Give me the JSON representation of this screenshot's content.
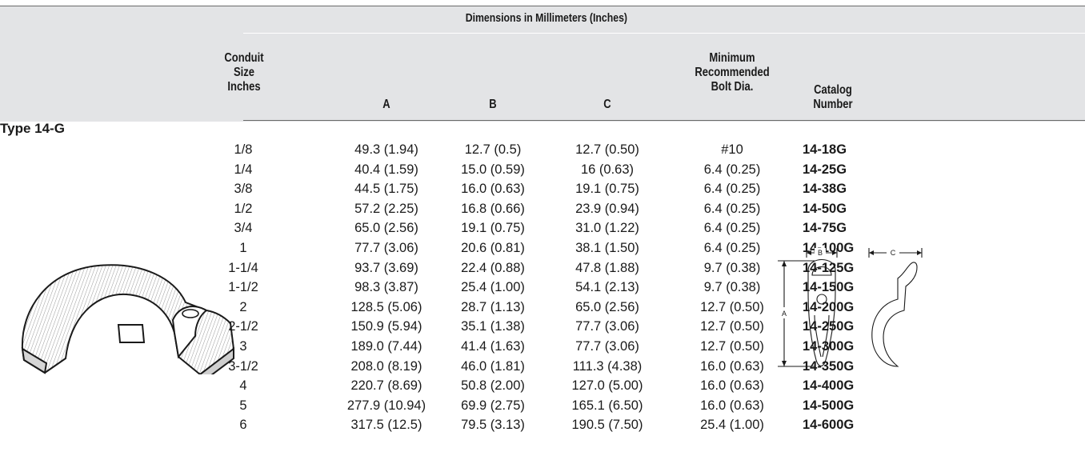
{
  "title": "Dimensions in Millimeters (Inches)",
  "columns": {
    "size": [
      "Conduit",
      "Size",
      "Inches"
    ],
    "a": "A",
    "b": "B",
    "c": "C",
    "bolt": [
      "Minimum",
      "Recommended",
      "Bolt Dia."
    ],
    "catalog": [
      "Catalog",
      "Number"
    ]
  },
  "type_label": "Type 14-G",
  "rows": [
    {
      "size": "1/8",
      "a": "49.3 (1.94)",
      "b": "12.7 (0.5)",
      "c": "12.7 (0.50)",
      "bolt": "#10",
      "catalog": "14-18G"
    },
    {
      "size": "1/4",
      "a": "40.4 (1.59)",
      "b": "15.0 (0.59)",
      "c": "16 (0.63)",
      "bolt": "6.4 (0.25)",
      "catalog": "14-25G"
    },
    {
      "size": "3/8",
      "a": "44.5 (1.75)",
      "b": "16.0 (0.63)",
      "c": "19.1 (0.75)",
      "bolt": "6.4 (0.25)",
      "catalog": "14-38G"
    },
    {
      "size": "1/2",
      "a": "57.2 (2.25)",
      "b": "16.8 (0.66)",
      "c": "23.9 (0.94)",
      "bolt": "6.4 (0.25)",
      "catalog": "14-50G"
    },
    {
      "size": "3/4",
      "a": "65.0 (2.56)",
      "b": "19.1 (0.75)",
      "c": "31.0 (1.22)",
      "bolt": "6.4 (0.25)",
      "catalog": "14-75G"
    },
    {
      "size": "1",
      "a": "77.7 (3.06)",
      "b": "20.6 (0.81)",
      "c": "38.1 (1.50)",
      "bolt": "6.4 (0.25)",
      "catalog": "14-100G"
    },
    {
      "size": "1-1/4",
      "a": "93.7 (3.69)",
      "b": "22.4 (0.88)",
      "c": "47.8 (1.88)",
      "bolt": "9.7 (0.38)",
      "catalog": "14-125G"
    },
    {
      "size": "1-1/2",
      "a": "98.3 (3.87)",
      "b": "25.4 (1.00)",
      "c": "54.1 (2.13)",
      "bolt": "9.7 (0.38)",
      "catalog": "14-150G"
    },
    {
      "size": "2",
      "a": "128.5 (5.06)",
      "b": "28.7 (1.13)",
      "c": "65.0 (2.56)",
      "bolt": "12.7 (0.50)",
      "catalog": "14-200G"
    },
    {
      "size": "2-1/2",
      "a": "150.9 (5.94)",
      "b": "35.1 (1.38)",
      "c": "77.7 (3.06)",
      "bolt": "12.7 (0.50)",
      "catalog": "14-250G"
    },
    {
      "size": "3",
      "a": "189.0 (7.44)",
      "b": "41.4 (1.63)",
      "c": "77.7 (3.06)",
      "bolt": "12.7 (0.50)",
      "catalog": "14-300G"
    },
    {
      "size": "3-1/2",
      "a": "208.0 (8.19)",
      "b": "46.0 (1.81)",
      "c": "111.3 (4.38)",
      "bolt": "16.0 (0.63)",
      "catalog": "14-350G"
    },
    {
      "size": "4",
      "a": "220.7 (8.69)",
      "b": "50.8 (2.00)",
      "c": "127.0 (5.00)",
      "bolt": "16.0 (0.63)",
      "catalog": "14-400G"
    },
    {
      "size": "5",
      "a": "277.9 (10.94)",
      "b": "69.9 (2.75)",
      "c": "165.1 (6.50)",
      "bolt": "16.0 (0.63)",
      "catalog": "14-500G"
    },
    {
      "size": "6",
      "a": "317.5 (12.5)",
      "b": "79.5 (3.13)",
      "c": "190.5 (7.50)",
      "bolt": "25.4 (1.00)",
      "catalog": "14-600G"
    }
  ],
  "diagram_labels": {
    "a": "A",
    "b": "B",
    "c": "C"
  }
}
